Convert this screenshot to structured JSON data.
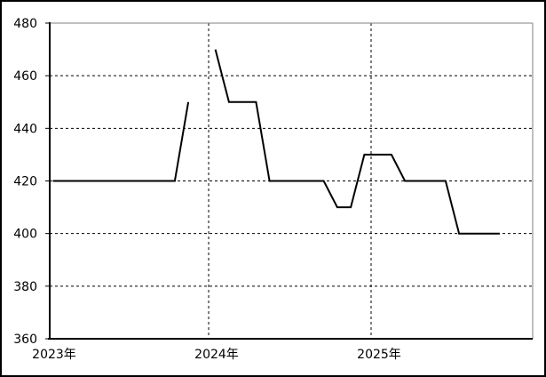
{
  "window": {
    "background": "#ffffff",
    "border_color": "#000000"
  },
  "chart_data": {
    "type": "line",
    "title": "",
    "xlabel": "",
    "ylabel": "",
    "legend": "none",
    "grid": "dashed",
    "ylim": [
      360,
      480
    ],
    "y_ticks": [
      360,
      380,
      400,
      420,
      440,
      460,
      480
    ],
    "x_tick_labels": [
      "2023年",
      "2024年",
      "2025年"
    ],
    "line_color": "#000000",
    "gridline_color": "#000000",
    "frame_color": "#808080",
    "x": [
      "2023-01",
      "2023-02",
      "2023-03",
      "2023-04",
      "2023-05",
      "2023-06",
      "2023-07",
      "2023-08",
      "2023-09",
      "2023-10",
      "2023-11",
      "2023-12",
      "2024-01",
      "2024-02",
      "2024-03",
      "2024-04",
      "2024-05",
      "2024-06",
      "2024-07",
      "2024-08",
      "2024-09",
      "2024-10",
      "2024-11",
      "2024-12",
      "2025-01",
      "2025-02",
      "2025-03",
      "2025-04",
      "2025-05",
      "2025-06",
      "2025-07",
      "2025-08",
      "2025-09",
      "2025-10"
    ],
    "values": [
      420,
      420,
      420,
      420,
      420,
      420,
      420,
      420,
      420,
      420,
      450,
      null,
      470,
      450,
      450,
      450,
      420,
      420,
      420,
      420,
      420,
      410,
      410,
      430,
      430,
      430,
      420,
      420,
      420,
      420,
      400,
      400,
      400,
      400
    ]
  }
}
